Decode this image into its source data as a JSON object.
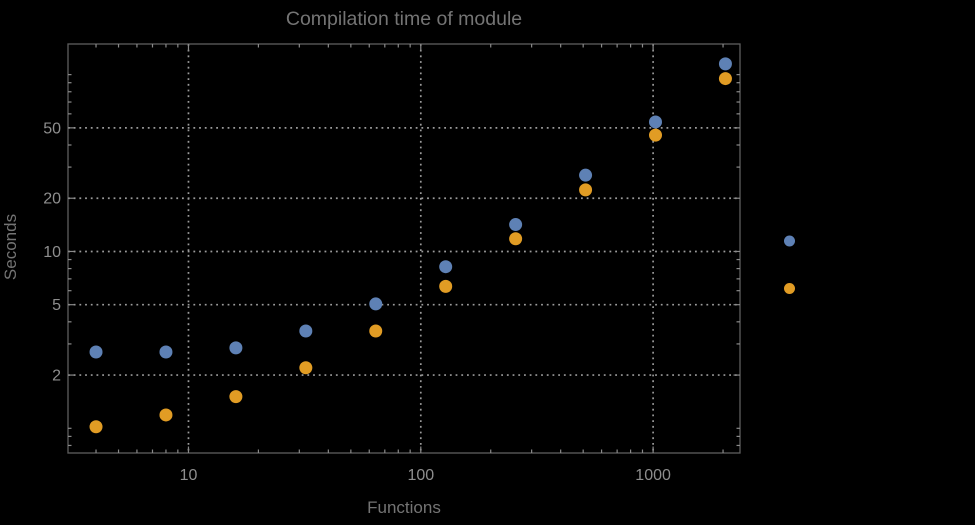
{
  "chart_data": {
    "type": "scatter",
    "title": "Compilation time of module",
    "xlabel": "Functions",
    "ylabel": "Seconds",
    "x_scale": "log",
    "y_scale": "log",
    "xlim": [
      3.03,
      2366
    ],
    "ylim": [
      0.725,
      149
    ],
    "grid": "dotted, at labeled ticks only",
    "legend_position": "right-of-frame, vertically centered, markers only (no visible labels)",
    "x_tick_labels": [
      "10",
      "100",
      "1000"
    ],
    "x_tick_values": [
      10,
      100,
      1000
    ],
    "x_minor_ticks": [
      4,
      5,
      6,
      7,
      8,
      9,
      20,
      30,
      40,
      50,
      60,
      70,
      80,
      90,
      200,
      300,
      400,
      500,
      600,
      700,
      800,
      900,
      2000
    ],
    "y_tick_labels": [
      "2",
      "5",
      "10",
      "20",
      "50"
    ],
    "y_tick_values": [
      2,
      5,
      10,
      20,
      50
    ],
    "y_minor_ticks": [
      0.8,
      0.9,
      1,
      3,
      4,
      6,
      7,
      8,
      9,
      30,
      40,
      60,
      70,
      80,
      90,
      100
    ],
    "x": [
      4,
      8,
      16,
      32,
      64,
      128,
      256,
      512,
      1024,
      2048
    ],
    "series": [
      {
        "name": "series-blue",
        "color": "#5E81B5",
        "values": [
          2.7,
          2.7,
          2.85,
          3.55,
          5.05,
          8.2,
          14.2,
          27,
          54,
          115
        ]
      },
      {
        "name": "series-orange",
        "color": "#E19C24",
        "values": [
          1.02,
          1.19,
          1.51,
          2.2,
          3.55,
          6.35,
          11.8,
          22.3,
          45.5,
          95
        ]
      }
    ],
    "legend_markers": [
      {
        "series": "series-blue",
        "color": "#5E81B5"
      },
      {
        "series": "series-orange",
        "color": "#E19C24"
      }
    ]
  },
  "colors": {
    "background": "#000000",
    "frame": "#5e5e5e",
    "grid": "#9b9b9b",
    "tick": "#8a8a8a",
    "tick_label": "#8e8e8e",
    "label_text": "#747474"
  }
}
